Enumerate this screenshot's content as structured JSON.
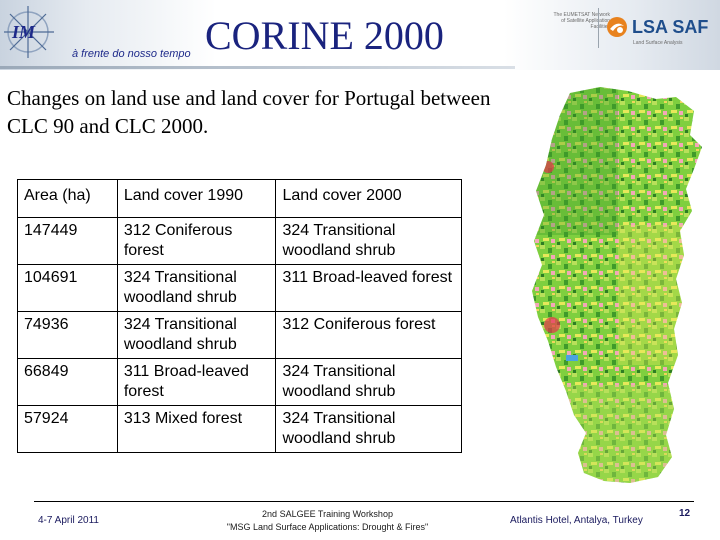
{
  "header": {
    "title": "CORINE 2000",
    "tagline": "à frente do nosso tempo",
    "eumetsat_text": "The EUMETSAT Network of Satellite Application Facilities",
    "lsa_logo": "LSA SAF",
    "lsa_subtitle": "Land Surface Analysis"
  },
  "subtitle": "Changes on land use and land cover for Portugal between CLC 90 and CLC 2000.",
  "table": {
    "headers": [
      "Area (ha)",
      "Land cover 1990",
      "Land cover 2000"
    ],
    "rows": [
      [
        "147449",
        "312 Coniferous forest",
        "324 Transitional woodland shrub"
      ],
      [
        "104691",
        "324 Transitional woodland shrub",
        "311 Broad-leaved forest"
      ],
      [
        "74936",
        "324 Transitional woodland shrub",
        "312 Coniferous forest"
      ],
      [
        "66849",
        "311 Broad-leaved forest",
        "324 Transitional woodland shrub"
      ],
      [
        "57924",
        "313 Mixed forest",
        "324 Transitional woodland shrub"
      ]
    ]
  },
  "footer": {
    "date": "4-7 April 2011",
    "workshop_line1": "2nd SALGEE Training Workshop",
    "workshop_line2": "\"MSG Land Surface Applications: Drought & Fires\"",
    "venue": "Atlantis Hotel, Antalya, Turkey",
    "page_number": "12"
  },
  "icons": {
    "im_logo": "im-star-logo-icon",
    "lsa_logo": "lsa-swirl-icon",
    "map": "portugal-land-cover-map"
  },
  "colors": {
    "title": "#1a237e",
    "lsa_blue": "#1f4e8c",
    "lsa_orange": "#e8821e",
    "map_green": "#6fc63a"
  }
}
